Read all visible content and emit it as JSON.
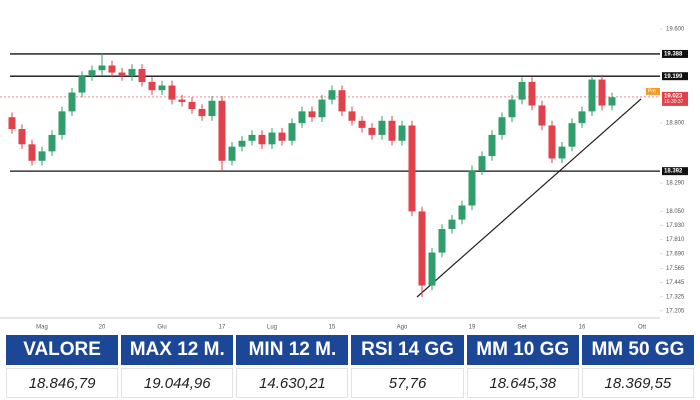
{
  "chart_data": {
    "type": "candlestick",
    "categories": [
      null,
      null,
      null,
      "Mag",
      null,
      null,
      null,
      null,
      null,
      "20",
      null,
      null,
      null,
      null,
      null,
      "Giu",
      null,
      null,
      null,
      null,
      null,
      "17",
      null,
      null,
      null,
      null,
      "Lug",
      null,
      null,
      null,
      null,
      null,
      "15",
      null,
      null,
      null,
      null,
      null,
      null,
      "Ago",
      null,
      null,
      null,
      null,
      null,
      null,
      "19",
      null,
      null,
      null,
      null,
      "Set",
      null,
      null,
      null,
      null,
      null,
      "16",
      null,
      null,
      null,
      null,
      null,
      "Ott"
    ],
    "open": [
      18850,
      18750,
      18620,
      18480,
      18560,
      18700,
      18900,
      19060,
      19200,
      19250,
      19290,
      19230,
      19200,
      19260,
      19150,
      19080,
      19120,
      19000,
      18980,
      18920,
      18860,
      18990,
      18480,
      18600,
      18650,
      18700,
      18620,
      18720,
      18650,
      18800,
      18900,
      18850,
      19000,
      19080,
      18900,
      18820,
      18760,
      18700,
      18820,
      18650,
      18780,
      18050,
      17420,
      17700,
      17900,
      17980,
      18100,
      18400,
      18520,
      18700,
      18850,
      19000,
      19150,
      18950,
      18780,
      18500,
      18600,
      18800,
      18900,
      19170,
      18950,
      null,
      null,
      null
    ],
    "high": [
      18890,
      18790,
      18660,
      18600,
      18740,
      18940,
      19100,
      19240,
      19290,
      19390,
      19330,
      19270,
      19300,
      19300,
      19190,
      19160,
      19160,
      19040,
      19020,
      18960,
      19030,
      19030,
      18640,
      18690,
      18740,
      18740,
      18760,
      18760,
      18840,
      18940,
      18940,
      19040,
      19120,
      19120,
      18940,
      18860,
      18800,
      18860,
      18860,
      18820,
      18820,
      18090,
      17740,
      17940,
      18020,
      18140,
      18440,
      18560,
      18740,
      18890,
      19040,
      19190,
      19190,
      18990,
      18820,
      18640,
      18840,
      18940,
      19210,
      19210,
      19060,
      null,
      null,
      null
    ],
    "low": [
      18710,
      18580,
      18440,
      18440,
      18520,
      18660,
      18860,
      19020,
      19160,
      19210,
      19190,
      19160,
      19160,
      19110,
      19040,
      19040,
      18960,
      18940,
      18880,
      18820,
      18820,
      18390,
      18440,
      18560,
      18610,
      18580,
      18580,
      18610,
      18610,
      18760,
      18810,
      18810,
      18960,
      18860,
      18780,
      18720,
      18660,
      18660,
      18610,
      18610,
      18010,
      17320,
      17380,
      17660,
      17860,
      17940,
      18060,
      18360,
      18480,
      18660,
      18810,
      18960,
      18910,
      18740,
      18460,
      18460,
      18560,
      18760,
      18860,
      18910,
      18910,
      null,
      null,
      null
    ],
    "close": [
      18750,
      18620,
      18480,
      18560,
      18700,
      18900,
      19060,
      19200,
      19250,
      19290,
      19230,
      19200,
      19260,
      19150,
      19080,
      19120,
      19000,
      18980,
      18920,
      18860,
      18990,
      18480,
      18600,
      18650,
      18700,
      18620,
      18720,
      18650,
      18800,
      18900,
      18850,
      19000,
      19080,
      18900,
      18820,
      18760,
      18700,
      18820,
      18650,
      18780,
      18050,
      17420,
      17700,
      17900,
      17980,
      18100,
      18400,
      18520,
      18700,
      18850,
      19000,
      19150,
      18950,
      18780,
      18500,
      18600,
      18800,
      18900,
      19170,
      18950,
      19020,
      null,
      null,
      null
    ],
    "up_color": "#2f9e6a",
    "down_color": "#e0414b",
    "ylim": [
      17144,
      19804
    ],
    "yticks": [
      {
        "value": 19600,
        "label": "19.600"
      },
      {
        "value": 18800,
        "label": "18.800"
      },
      {
        "value": 18290,
        "label": "18.290"
      },
      {
        "value": 18050,
        "label": "18.050"
      },
      {
        "value": 17930,
        "label": "17.930"
      },
      {
        "value": 17810,
        "label": "17.810"
      },
      {
        "value": 17690,
        "label": "17.690"
      },
      {
        "value": 17565,
        "label": "17.565"
      },
      {
        "value": 17445,
        "label": "17.445"
      },
      {
        "value": 17325,
        "label": "17.325"
      },
      {
        "value": 17205,
        "label": "17.205"
      }
    ],
    "levels": [
      {
        "value": 19388,
        "label": "19.388"
      },
      {
        "value": 19199,
        "label": "19.199"
      },
      {
        "value": 18392,
        "label": "18.392"
      }
    ],
    "last_price": {
      "value": 19023,
      "label": "19.023",
      "time": "16:30:37",
      "tag": "Pre"
    }
  },
  "table": {
    "headers": [
      "VALORE",
      "MAX 12 M.",
      "MIN 12 M.",
      "RSI 14 GG",
      "MM 10 GG",
      "MM 50 GG"
    ],
    "values": [
      "18.846,79",
      "19.044,96",
      "14.630,21",
      "57,76",
      "18.645,38",
      "18.369,55"
    ]
  }
}
